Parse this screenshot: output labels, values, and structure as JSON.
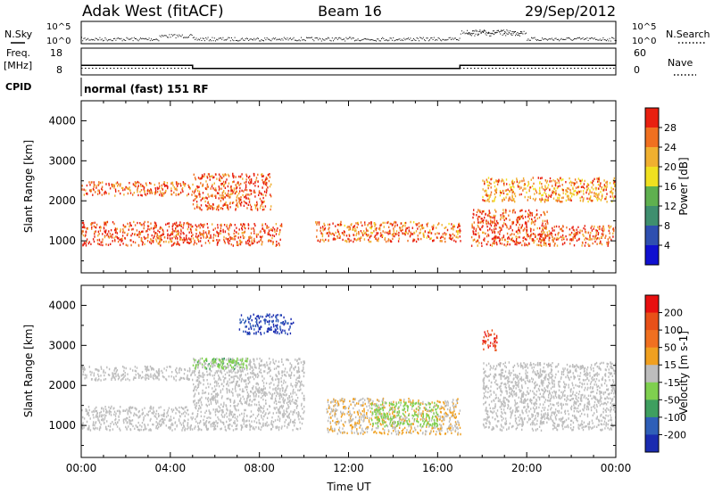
{
  "header": {
    "site": "Adak West (fitACF)",
    "beam": "Beam 16",
    "date": "29/Sep/2012"
  },
  "colors": {
    "power_scale": [
      "#1010d0",
      "#2f4fb0",
      "#3f8f6f",
      "#5fb04f",
      "#f0e020",
      "#f0b030",
      "#f07020",
      "#e82010"
    ],
    "velocity_scale": [
      "#1a2bb0",
      "#2f5fb8",
      "#3f9f5f",
      "#7fd04f",
      "#bdbdbd",
      "#f0a020",
      "#f07020",
      "#e85018",
      "#e81010"
    ],
    "ground_scatter": "#bdbdbd"
  },
  "chart_data": [
    {
      "type": "line",
      "panel": "noise",
      "left_labels": [
        "N.Sky"
      ],
      "right_labels": [
        "N.Search"
      ],
      "left_ticks": [
        "10^5",
        "10^0"
      ],
      "right_ticks": [
        "10^5",
        "10^0"
      ],
      "y_scale": "log",
      "ylim": [
        1,
        100000
      ]
    },
    {
      "type": "line",
      "panel": "frequency / nave",
      "left_labels": [
        "Freq.",
        "[MHz]"
      ],
      "right_labels": [
        "Nave"
      ],
      "left_ticks": [
        "18",
        "8"
      ],
      "right_ticks": [
        "60",
        "0"
      ],
      "ylim_left": [
        8,
        18
      ],
      "ylim_right": [
        0,
        60
      ],
      "series": [
        {
          "name": "Freq.",
          "x": [
            "00:00",
            "05:00",
            "05:00",
            "17:00",
            "17:00",
            "24:00"
          ],
          "values": [
            11.6,
            11.6,
            10.4,
            10.4,
            11.6,
            11.6
          ]
        },
        {
          "name": "Nave",
          "x": [
            "00:00",
            "24:00"
          ],
          "values": [
            15,
            15
          ]
        }
      ]
    },
    {
      "type": "table",
      "panel": "cpid",
      "label": "CPID",
      "text": "normal (fast) 151 RF"
    },
    {
      "type": "heatmap",
      "panel": "power",
      "ylabel": "Slant Range [km]",
      "yticks": [
        "1000",
        "2000",
        "3000",
        "4000"
      ],
      "ylim": [
        200,
        4500
      ],
      "colorbar_label": "Power [dB]",
      "colorbar_ticks": [
        "4",
        "8",
        "12",
        "16",
        "20",
        "24",
        "28"
      ],
      "zlim": [
        0,
        30
      ],
      "echo_regions": [
        {
          "t_start": "00:00",
          "t_end": "05:00",
          "range_km": [
            900,
            1500
          ],
          "value_db": 27
        },
        {
          "t_start": "00:00",
          "t_end": "05:00",
          "range_km": [
            2150,
            2500
          ],
          "value_db": 25
        },
        {
          "t_start": "05:00",
          "t_end": "09:00",
          "range_km": [
            900,
            1450
          ],
          "value_db": 27
        },
        {
          "t_start": "05:00",
          "t_end": "08:30",
          "range_km": [
            1800,
            2700
          ],
          "value_db": 25
        },
        {
          "t_start": "10:30",
          "t_end": "17:00",
          "range_km": [
            1000,
            1500
          ],
          "value_db": 24
        },
        {
          "t_start": "17:30",
          "t_end": "21:00",
          "range_km": [
            900,
            1800
          ],
          "value_db": 26
        },
        {
          "t_start": "20:30",
          "t_end": "24:00",
          "range_km": [
            900,
            1400
          ],
          "value_db": 26
        },
        {
          "t_start": "18:00",
          "t_end": "24:00",
          "range_km": [
            2000,
            2600
          ],
          "value_db": 22
        }
      ]
    },
    {
      "type": "heatmap",
      "panel": "velocity",
      "xlabel": "Time UT",
      "xticks": [
        "00:00",
        "04:00",
        "08:00",
        "12:00",
        "16:00",
        "20:00",
        "00:00"
      ],
      "xlim_hours": [
        0,
        24
      ],
      "ylabel": "Slant Range [km]",
      "yticks": [
        "1000",
        "2000",
        "3000",
        "4000"
      ],
      "ylim": [
        200,
        4500
      ],
      "colorbar_label": "Velocity [m s-1]",
      "colorbar_ticks": [
        "200",
        "100",
        "50",
        "15",
        "-15",
        "-50",
        "-100",
        "-200"
      ],
      "zlim": [
        -250,
        250
      ],
      "echo_regions": [
        {
          "t_start": "00:00",
          "t_end": "05:00",
          "range_km": [
            900,
            1500
          ],
          "value_ms": 0,
          "ground_scatter": true
        },
        {
          "t_start": "00:00",
          "t_end": "05:00",
          "range_km": [
            2150,
            2500
          ],
          "value_ms": 0,
          "ground_scatter": true
        },
        {
          "t_start": "05:00",
          "t_end": "10:00",
          "range_km": [
            900,
            2700
          ],
          "value_ms": 0,
          "ground_scatter": true
        },
        {
          "t_start": "05:00",
          "t_end": "07:30",
          "range_km": [
            2400,
            2700
          ],
          "value_ms": -60
        },
        {
          "t_start": "07:00",
          "t_end": "09:30",
          "range_km": [
            3300,
            3800
          ],
          "value_ms": -200
        },
        {
          "t_start": "11:00",
          "t_end": "17:00",
          "range_km": [
            800,
            1700
          ],
          "value_ms": 30
        },
        {
          "t_start": "13:00",
          "t_end": "16:00",
          "range_km": [
            1000,
            1600
          ],
          "value_ms": -50
        },
        {
          "t_start": "18:00",
          "t_end": "18:40",
          "range_km": [
            2900,
            3400
          ],
          "value_ms": 200
        },
        {
          "t_start": "18:00",
          "t_end": "24:00",
          "range_km": [
            900,
            2600
          ],
          "value_ms": 0,
          "ground_scatter": true
        }
      ]
    }
  ]
}
